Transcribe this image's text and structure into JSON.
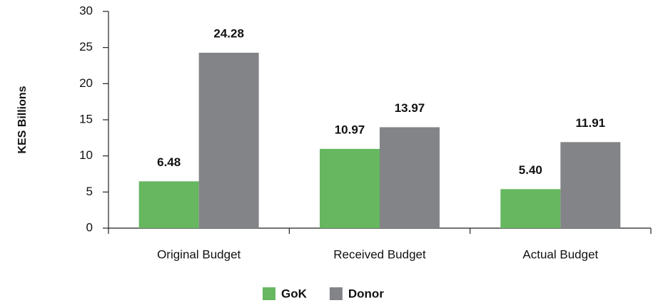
{
  "chart_data": {
    "type": "bar",
    "categories": [
      "Original Budget",
      "Received Budget",
      "Actual Budget"
    ],
    "series": [
      {
        "name": "GoK",
        "color": "#66b760",
        "values": [
          6.48,
          10.97,
          5.4
        ],
        "value_labels": [
          "6.48",
          "10.97",
          "5.40"
        ]
      },
      {
        "name": "Donor",
        "color": "#838487",
        "values": [
          24.28,
          13.97,
          11.91
        ],
        "value_labels": [
          "24.28",
          "13.97",
          "11.91"
        ]
      }
    ],
    "ylabel": "KES Billions",
    "ylim": [
      0,
      30
    ],
    "yticks": [
      0,
      5,
      10,
      15,
      20,
      25,
      30
    ],
    "legend": "bottom",
    "grid": false
  }
}
